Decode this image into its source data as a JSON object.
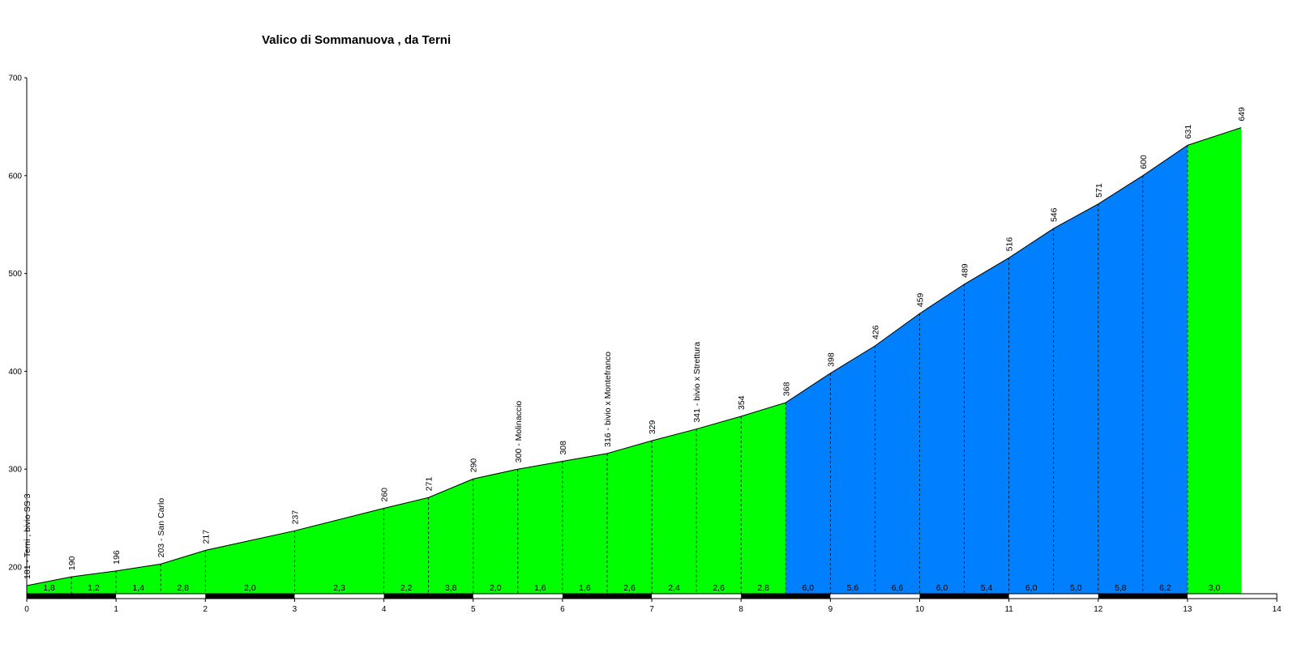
{
  "chart_data": {
    "type": "area",
    "title": "Valico di Sommanuova , da Terni",
    "xlabel": "",
    "ylabel": "",
    "xlim": [
      0,
      14
    ],
    "ylim": [
      170,
      700
    ],
    "x_ticks": [
      "0",
      "1",
      "2",
      "3",
      "4",
      "5",
      "6",
      "7",
      "8",
      "9",
      "10",
      "11",
      "12",
      "13",
      "14"
    ],
    "y_ticks": [
      "200",
      "300",
      "400",
      "500",
      "600",
      "700"
    ],
    "grid": false,
    "x": [
      0,
      0.5,
      1,
      1.5,
      2,
      3,
      4,
      4.5,
      5,
      5.5,
      6,
      6.5,
      7,
      7.5,
      8,
      8.5,
      9,
      9.5,
      10,
      10.5,
      11,
      11.5,
      12,
      12.5,
      13,
      13.6
    ],
    "elevation": [
      181,
      190,
      196,
      203,
      217,
      237,
      260,
      271,
      290,
      300,
      308,
      316,
      329,
      341,
      354,
      368,
      398,
      426,
      459,
      489,
      516,
      546,
      571,
      600,
      631,
      649
    ],
    "point_labels": [
      "181 - Terni , bivio SS 3",
      "190",
      "196",
      "203 - San Carlo",
      "217",
      "237",
      "260",
      "271",
      "290",
      "300 - Molinaccio",
      "308",
      "316 - bivio x Montefranco",
      "329",
      "341 - bivio x Strettura",
      "354",
      "368",
      "398",
      "426",
      "459",
      "489",
      "516",
      "546",
      "571",
      "600",
      "631",
      "649"
    ],
    "gradients": [
      "1,8",
      "1,2",
      "1,4",
      "2,8",
      "2,0",
      "2,3",
      "2,2",
      "3,8",
      "2,0",
      "1,6",
      "1,6",
      "2,6",
      "2,4",
      "2,6",
      "2,8",
      "6,0",
      "5,6",
      "6,6",
      "6,0",
      "5,4",
      "6,0",
      "5,0",
      "5,8",
      "6,2",
      "3,0"
    ],
    "segment_colors": [
      "#00ff00",
      "#00ff00",
      "#00ff00",
      "#00ff00",
      "#00ff00",
      "#00ff00",
      "#00ff00",
      "#00ff00",
      "#00ff00",
      "#00ff00",
      "#00ff00",
      "#00ff00",
      "#00ff00",
      "#00ff00",
      "#00ff00",
      "#0080ff",
      "#0080ff",
      "#0080ff",
      "#0080ff",
      "#0080ff",
      "#0080ff",
      "#0080ff",
      "#0080ff",
      "#0080ff",
      "#00ff00"
    ],
    "km_bar_colors": [
      "#000000",
      "#ffffff",
      "#000000",
      "#ffffff",
      "#000000",
      "#ffffff",
      "#000000",
      "#ffffff",
      "#000000",
      "#ffffff",
      "#000000",
      "#ffffff",
      "#000000",
      "#ffffff"
    ]
  }
}
